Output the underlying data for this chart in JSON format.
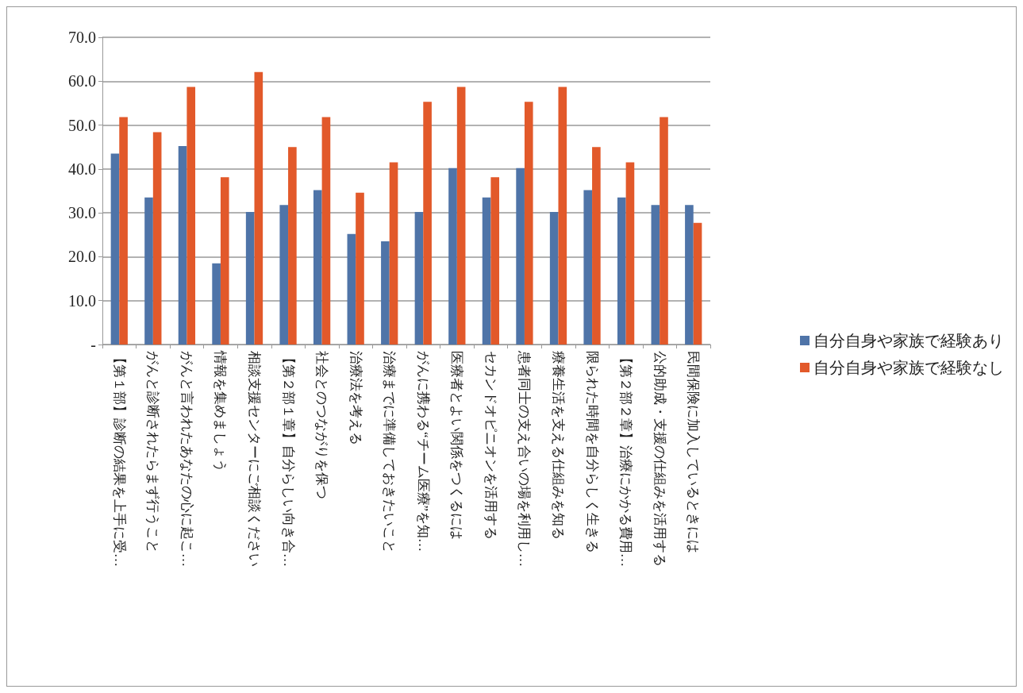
{
  "chart_data": {
    "type": "bar",
    "categories": [
      "【第１部】診断の結果を上手に受…",
      "がんと診断されたらまず行うこと",
      "がんと言われたあなたの心に起こ…",
      "情報を集めましょう",
      "相談支援センターにご相談ください",
      "【第２部１章】自分らしい向き合…",
      "社会とのつながりを保つ",
      "治療法を考える",
      "治療までに準備しておきたいこと",
      "がんに携わる“チーム医療”を知…",
      "医療者とよい関係をつくるには",
      "セカンドオピニオンを活用する",
      "患者同士の支え合いの場を利用し…",
      "療養生活を支える仕組みを知る",
      "限られた時間を自分らしく生きる",
      "【第２部２章】治療にかかる費用…",
      "公的助成・支援の仕組みを活用する",
      "民間保険に加入しているときには"
    ],
    "series": [
      {
        "name": "自分自身や家族で経験あり",
        "color": "#4f74a8",
        "values": [
          43.5,
          33.5,
          45.2,
          18.5,
          30.2,
          31.8,
          35.2,
          25.2,
          23.5,
          30.2,
          40.2,
          33.5,
          40.2,
          30.2,
          35.2,
          33.5,
          31.8,
          31.8
        ]
      },
      {
        "name": "自分自身や家族で経験なし",
        "color": "#e2592a",
        "values": [
          51.8,
          48.4,
          58.7,
          38.1,
          62.1,
          45.0,
          51.8,
          34.6,
          41.5,
          55.3,
          58.7,
          38.1,
          55.3,
          58.7,
          45.0,
          41.5,
          51.8,
          27.7
        ]
      }
    ],
    "ylim": [
      0,
      70
    ],
    "yticks": [
      {
        "value": 0,
        "label": "-"
      },
      {
        "value": 10,
        "label": "10.0"
      },
      {
        "value": 20,
        "label": "20.0"
      },
      {
        "value": 30,
        "label": "30.0"
      },
      {
        "value": 40,
        "label": "40.0"
      },
      {
        "value": 50,
        "label": "50.0"
      },
      {
        "value": 60,
        "label": "60.0"
      },
      {
        "value": 70,
        "label": "70.0"
      }
    ],
    "grid": "y",
    "legend": "right"
  }
}
